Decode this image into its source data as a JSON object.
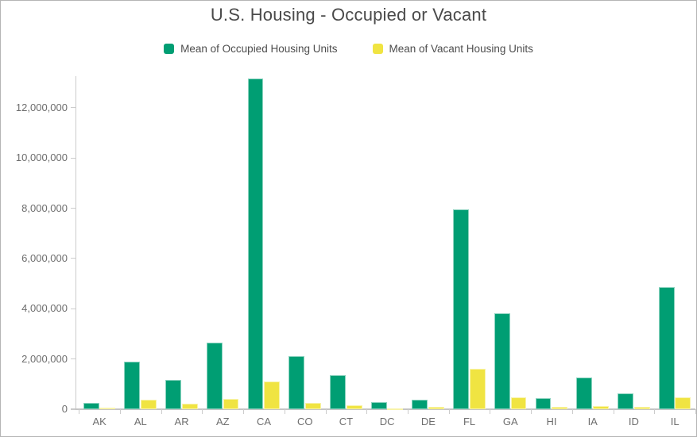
{
  "chart": {
    "title": "U.S. Housing - Occupied or Vacant"
  },
  "chart_data": {
    "type": "bar",
    "title": "U.S. Housing - Occupied or Vacant",
    "categories": [
      "AK",
      "AL",
      "AR",
      "AZ",
      "CA",
      "CO",
      "CT",
      "DC",
      "DE",
      "FL",
      "GA",
      "HI",
      "IA",
      "ID",
      "IL"
    ],
    "series": [
      {
        "name": "Mean of Occupied Housing Units",
        "color": "#009E73",
        "values": [
          250000,
          1910000,
          1170000,
          2640000,
          13170000,
          2110000,
          1370000,
          280000,
          365000,
          7950000,
          3820000,
          440000,
          1270000,
          645000,
          4870000
        ]
      },
      {
        "name": "Mean of Vacant Housing Units",
        "color": "#F0E442",
        "values": [
          55000,
          390000,
          215000,
          405000,
          1100000,
          240000,
          145000,
          45000,
          80000,
          1620000,
          480000,
          90000,
          140000,
          90000,
          480000
        ]
      }
    ],
    "xlabel": "",
    "ylabel": "",
    "ylim": [
      0,
      13260000
    ],
    "yticks": [
      0,
      2000000,
      4000000,
      6000000,
      8000000,
      10000000,
      12000000
    ],
    "grid": false,
    "legend_position": "top",
    "axis_text_color": "#6e6e6e",
    "title_color": "#4a4a4a"
  }
}
